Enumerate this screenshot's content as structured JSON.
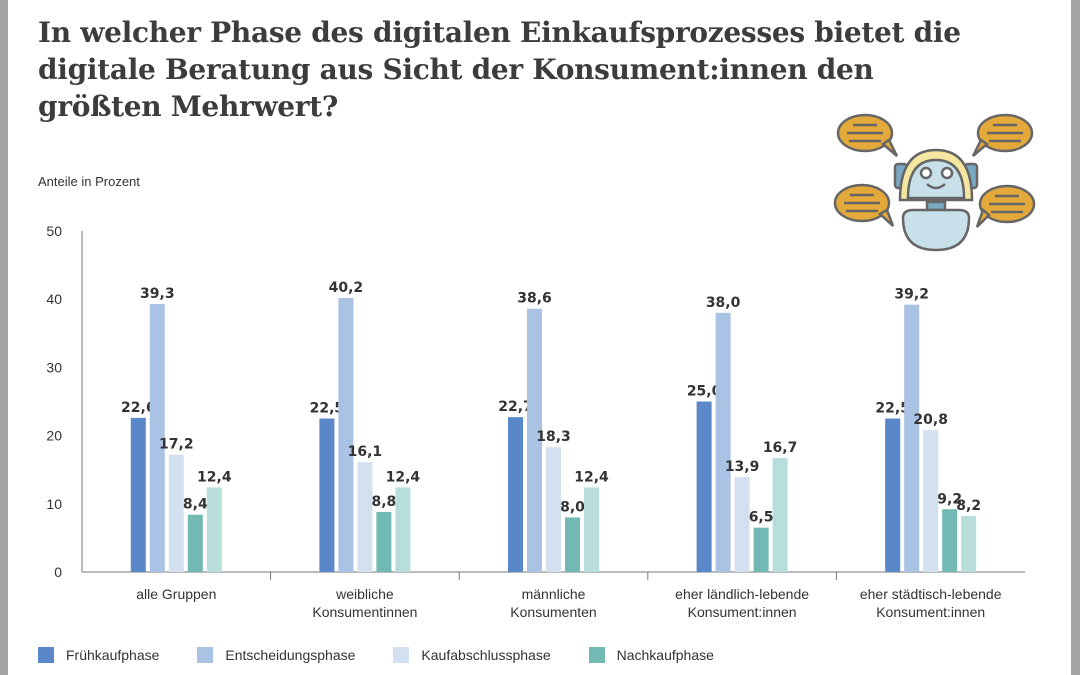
{
  "title": "In welcher Phase des digitalen Einkaufsprozesses bietet die digitale Beratung aus Sicht der Konsument:innen den größten Mehrwert?",
  "chart_data": {
    "type": "bar",
    "title": "In welcher Phase des digitalen Einkaufsprozesses bietet die digitale Beratung aus Sicht der Konsument:innen den größten Mehrwert?",
    "ylabel": "Anteile in Prozent",
    "xlabel": "",
    "ylim": [
      0,
      50
    ],
    "yticks": [
      "0",
      "10",
      "20",
      "30",
      "40",
      "50"
    ],
    "grid": false,
    "legend_position": "bottom",
    "categories": [
      [
        "alle Gruppen"
      ],
      [
        "weibliche",
        "Konsumentinnen"
      ],
      [
        "männliche",
        "Konsumenten"
      ],
      [
        "eher ländlich-lebende",
        "Konsument:innen"
      ],
      [
        "eher städtisch-lebende",
        "Konsument:innen"
      ]
    ],
    "series": [
      {
        "name": "Frühkaufphase",
        "color": "#5a87c8",
        "values": [
          22.6,
          22.5,
          22.7,
          25.0,
          22.5
        ],
        "labels": [
          "22,6",
          "22,5",
          "22,7",
          "25,0",
          "22,5"
        ]
      },
      {
        "name": "Entscheidungsphase",
        "color": "#aac2e4",
        "values": [
          39.3,
          40.2,
          38.6,
          38.0,
          39.2
        ],
        "labels": [
          "39,3",
          "40,2",
          "38,6",
          "38,0",
          "39,2"
        ]
      },
      {
        "name": "Kaufabschlussphase",
        "color": "#d3e0f0",
        "values": [
          17.2,
          16.1,
          18.3,
          13.9,
          20.8
        ],
        "labels": [
          "17,2",
          "16,1",
          "18,3",
          "13,9",
          "20,8"
        ]
      },
      {
        "name": "Nachkaufphase",
        "color": "#72b8b3",
        "values": [
          8.4,
          8.8,
          8.0,
          6.5,
          9.2
        ],
        "labels": [
          "8,4",
          "8,8",
          "8,0",
          "6,5",
          "9,2"
        ]
      },
      {
        "name": "",
        "color": "#b8dedb",
        "values": [
          12.4,
          12.4,
          12.4,
          16.7,
          8.2
        ],
        "labels": [
          "12,4",
          "12,4",
          "12,4",
          "16,7",
          "8,2"
        ]
      }
    ]
  }
}
